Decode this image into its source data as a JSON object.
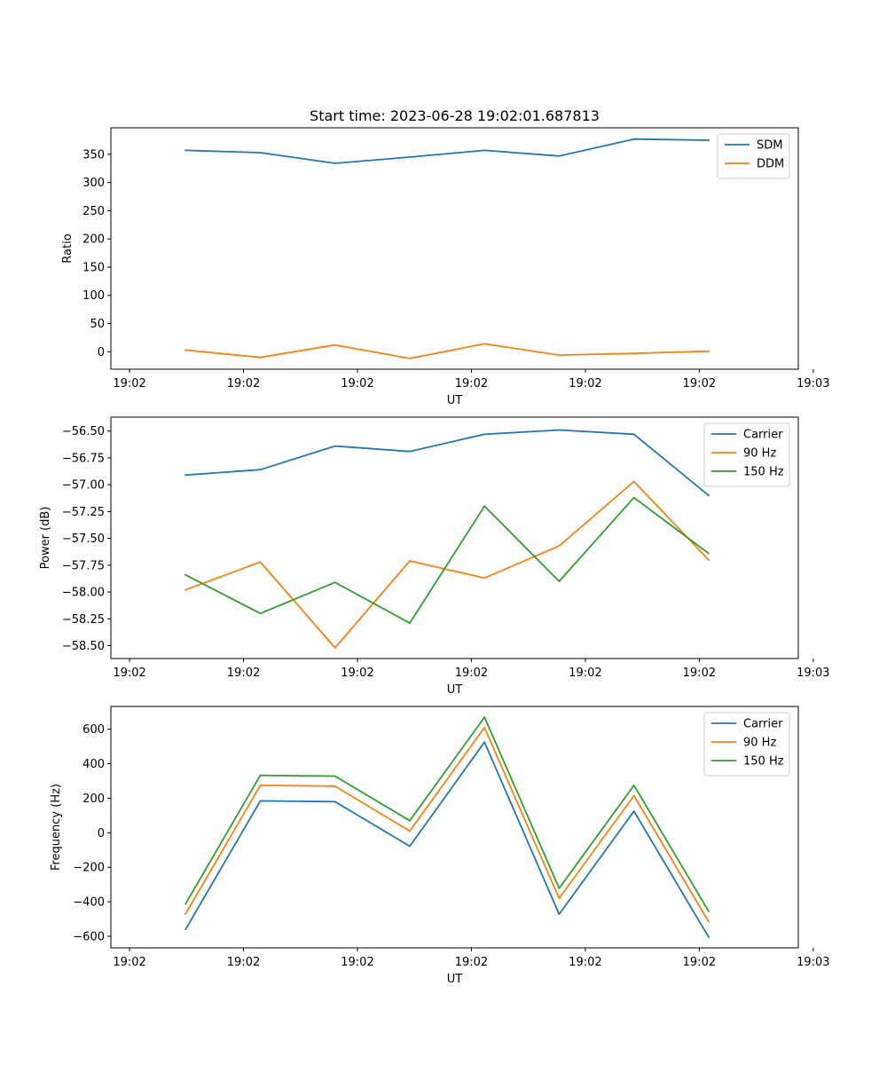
{
  "figure_title": "Start time: 2023-06-28 19:02:01.687813",
  "chart_data": [
    {
      "type": "line",
      "title": "Start time: 2023-06-28 19:02:01.687813",
      "xlabel": "UT",
      "ylabel": "Ratio",
      "x": [
        1.0,
        2.0,
        3.0,
        4.0,
        5.0,
        6.0,
        7.0,
        8.0
      ],
      "xlim": [
        0.0,
        9.2
      ],
      "xticks": [
        0.25,
        1.775,
        3.3,
        4.825,
        6.35,
        7.875,
        9.4
      ],
      "xtick_labels": [
        "19:02",
        "19:02",
        "19:02",
        "19:02",
        "19:02",
        "19:02",
        "19:03"
      ],
      "ylim": [
        -31,
        397
      ],
      "yticks": [
        0,
        50,
        100,
        150,
        200,
        250,
        300,
        350
      ],
      "ytick_labels": [
        "0",
        "50",
        "100",
        "150",
        "200",
        "250",
        "300",
        "350"
      ],
      "legend": "top-right",
      "series": [
        {
          "name": "SDM",
          "color": "#1f77b4",
          "values": [
            357,
            353,
            334,
            345,
            357,
            347,
            377,
            375
          ]
        },
        {
          "name": "DDM",
          "color": "#ff7f0e",
          "values": [
            3,
            -10,
            12,
            -12,
            14,
            -6,
            -3,
            1
          ]
        }
      ]
    },
    {
      "type": "line",
      "title": "",
      "xlabel": "UT",
      "ylabel": "Power (dB)",
      "x": [
        1.0,
        2.0,
        3.0,
        4.0,
        5.0,
        6.0,
        7.0,
        8.0
      ],
      "xlim": [
        0.0,
        9.2
      ],
      "xticks": [
        0.25,
        1.775,
        3.3,
        4.825,
        6.35,
        7.875,
        9.4
      ],
      "xtick_labels": [
        "19:02",
        "19:02",
        "19:02",
        "19:02",
        "19:02",
        "19:02",
        "19:03"
      ],
      "ylim": [
        -58.62,
        -56.37
      ],
      "yticks": [
        -58.5,
        -58.25,
        -58.0,
        -57.75,
        -57.5,
        -57.25,
        -57.0,
        -56.75,
        -56.5
      ],
      "ytick_labels": [
        "−58.50",
        "−58.25",
        "−58.00",
        "−57.75",
        "−57.50",
        "−57.25",
        "−57.00",
        "−56.75",
        "−56.50"
      ],
      "legend": "top-right",
      "series": [
        {
          "name": "Carrier",
          "color": "#1f77b4",
          "values": [
            -56.91,
            -56.86,
            -56.64,
            -56.69,
            -56.53,
            -56.49,
            -56.53,
            -57.1
          ]
        },
        {
          "name": "90 Hz",
          "color": "#ff7f0e",
          "values": [
            -57.98,
            -57.72,
            -58.52,
            -57.71,
            -57.87,
            -57.57,
            -56.97,
            -57.7
          ]
        },
        {
          "name": "150 Hz",
          "color": "#2ca02c",
          "values": [
            -57.84,
            -58.2,
            -57.91,
            -58.29,
            -57.2,
            -57.9,
            -57.12,
            -57.64
          ]
        }
      ]
    },
    {
      "type": "line",
      "title": "",
      "xlabel": "UT",
      "ylabel": "Frequency (Hz)",
      "x": [
        1.0,
        2.0,
        3.0,
        4.0,
        5.0,
        6.0,
        7.0,
        8.0
      ],
      "xlim": [
        0.0,
        9.2
      ],
      "xticks": [
        0.25,
        1.775,
        3.3,
        4.825,
        6.35,
        7.875,
        9.4
      ],
      "xtick_labels": [
        "19:02",
        "19:02",
        "19:02",
        "19:02",
        "19:02",
        "19:02",
        "19:03"
      ],
      "ylim": [
        -667,
        732
      ],
      "yticks": [
        -600,
        -400,
        -200,
        0,
        200,
        400,
        600
      ],
      "ytick_labels": [
        "−600",
        "−400",
        "−200",
        "0",
        "200",
        "400",
        "600"
      ],
      "legend": "top-right",
      "series": [
        {
          "name": "Carrier",
          "color": "#1f77b4",
          "values": [
            -560,
            185,
            180,
            -78,
            525,
            -472,
            125,
            -605
          ]
        },
        {
          "name": "90 Hz",
          "color": "#ff7f0e",
          "values": [
            -470,
            275,
            270,
            10,
            610,
            -380,
            215,
            -515
          ]
        },
        {
          "name": "150 Hz",
          "color": "#2ca02c",
          "values": [
            -412,
            333,
            328,
            70,
            670,
            -322,
            275,
            -455
          ]
        }
      ]
    }
  ]
}
